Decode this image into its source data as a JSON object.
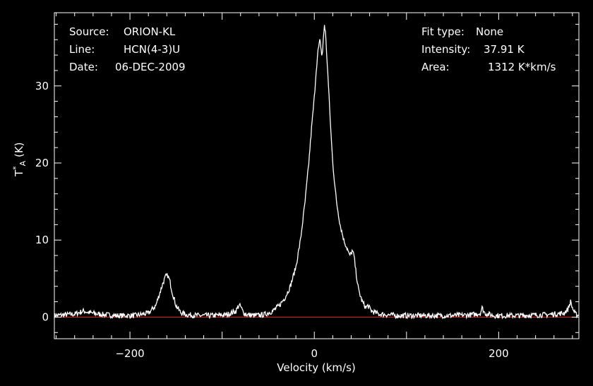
{
  "info_left": {
    "source_label": "Source:",
    "source_value": "ORION-KL",
    "line_label": "Line:",
    "line_value": "HCN(4-3)U",
    "date_label": "Date:",
    "date_value": "06-DEC-2009"
  },
  "info_right": {
    "fit_label": "Fit type:",
    "fit_value": "None",
    "intensity_label": "Intensity:",
    "intensity_value": "37.91 K",
    "area_label": "Area:",
    "area_value": "1312 K*km/s"
  },
  "colors": {
    "background": "#000000",
    "spectrum": "#ffffff",
    "baseline": "#cc2222",
    "axes": "#ffffff"
  },
  "chart_data": {
    "type": "line",
    "title": "",
    "xlabel": "Velocity (km/s)",
    "ylabel": "T*A (K)",
    "xlim": [
      -282,
      287
    ],
    "ylim": [
      -2.8,
      39.5
    ],
    "x_ticks": [
      -200,
      0,
      200
    ],
    "x_tick_labels": [
      "−200",
      "0",
      "200"
    ],
    "y_ticks": [
      0,
      10,
      20,
      30
    ],
    "y_tick_labels": [
      "0",
      "10",
      "20",
      "30"
    ],
    "grid": false,
    "baseline_y": 0,
    "series": [
      {
        "x": [
          -282,
          -260,
          -250,
          -245,
          -235,
          -215,
          -195,
          -180,
          -172,
          -168,
          -164,
          -161,
          -159,
          -157,
          -154,
          -150,
          -145,
          -138,
          -125,
          -110,
          -95,
          -85,
          -82,
          -80,
          -77,
          -73,
          -65,
          -55,
          -45,
          -38,
          -32,
          -26,
          -20,
          -15,
          -10,
          -6,
          -3,
          0,
          2,
          4,
          6,
          7,
          8,
          9,
          10,
          11,
          12,
          14,
          16,
          18,
          20,
          24,
          28,
          32,
          36,
          38,
          40,
          41,
          43,
          45,
          48,
          52,
          56,
          58,
          62,
          70,
          90,
          120,
          150,
          170,
          180,
          182,
          185,
          195,
          220,
          250,
          270,
          275,
          278,
          280,
          283,
          287
        ],
        "y": [
          0.2,
          0.4,
          0.8,
          0.6,
          0.4,
          0.2,
          0.2,
          0.5,
          1.5,
          3.0,
          4.5,
          5.3,
          5.4,
          4.8,
          3.2,
          1.5,
          0.6,
          0.3,
          0.2,
          0.2,
          0.3,
          0.8,
          1.5,
          1.4,
          0.6,
          0.3,
          0.2,
          0.3,
          0.8,
          1.5,
          2.5,
          4.0,
          6.5,
          10.0,
          15.0,
          20.0,
          24.5,
          28.5,
          32.0,
          34.5,
          35.8,
          35.2,
          34.0,
          34.5,
          36.5,
          37.9,
          37.0,
          33.0,
          28.5,
          24.0,
          20.0,
          15.0,
          12.0,
          10.0,
          8.8,
          8.0,
          8.2,
          8.6,
          8.0,
          6.0,
          3.5,
          2.0,
          1.2,
          1.5,
          0.8,
          0.4,
          0.2,
          0.2,
          0.2,
          0.3,
          0.5,
          1.2,
          0.5,
          0.2,
          0.2,
          0.3,
          0.5,
          1.0,
          2.0,
          1.2,
          0.4,
          0.2
        ]
      }
    ]
  }
}
